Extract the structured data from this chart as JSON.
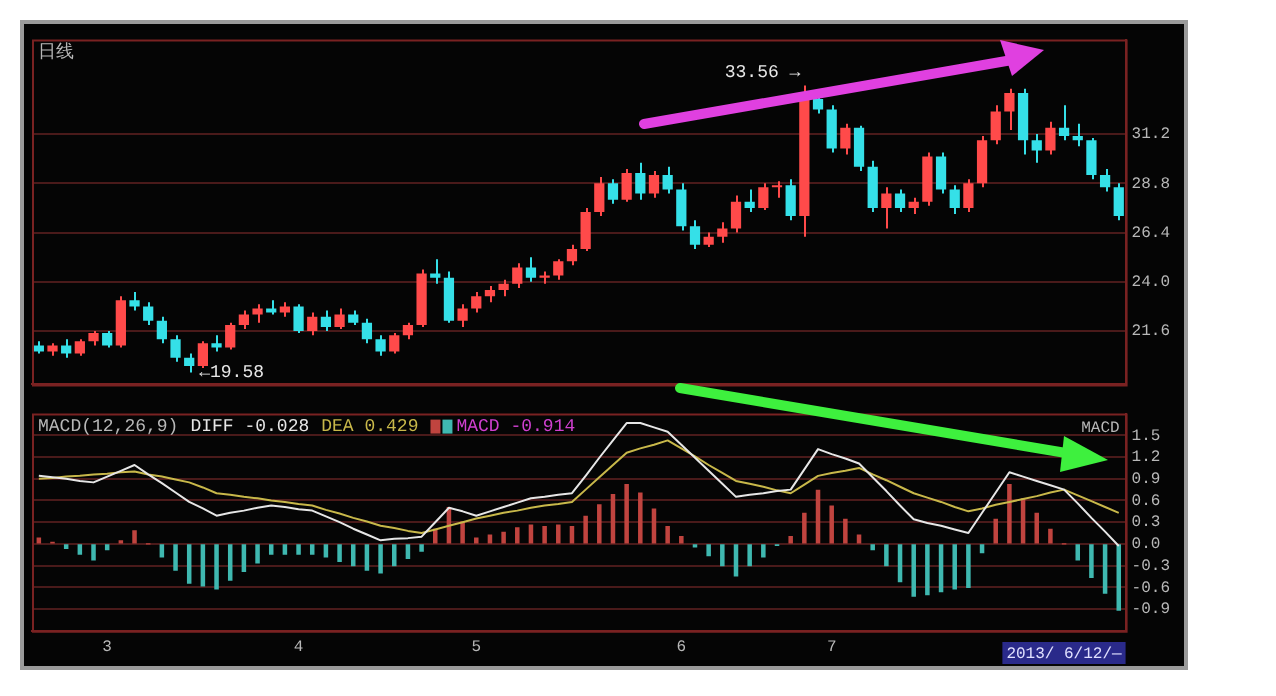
{
  "chart_data": [
    {
      "type": "candlestick",
      "title": "日线",
      "categories": [
        null,
        null,
        null,
        null,
        null,
        "3",
        null,
        null,
        null,
        null,
        null,
        null,
        null,
        null,
        null,
        null,
        null,
        null,
        null,
        "4",
        null,
        null,
        null,
        null,
        null,
        null,
        null,
        null,
        null,
        null,
        null,
        null,
        "5",
        null,
        null,
        null,
        null,
        null,
        null,
        null,
        null,
        null,
        null,
        null,
        null,
        null,
        null,
        "6",
        null,
        null,
        null,
        null,
        null,
        null,
        null,
        null,
        null,
        null,
        "7",
        null,
        null,
        null,
        null,
        null,
        null,
        null,
        null,
        null,
        null,
        null,
        null,
        null,
        null,
        null,
        null,
        null,
        null,
        null,
        null,
        null
      ],
      "ohlc": [
        [
          20.9,
          21.1,
          20.5,
          20.6
        ],
        [
          20.6,
          21.0,
          20.4,
          20.9
        ],
        [
          20.9,
          21.2,
          20.3,
          20.5
        ],
        [
          20.5,
          21.2,
          20.4,
          21.1
        ],
        [
          21.1,
          21.6,
          20.9,
          21.5
        ],
        [
          21.5,
          21.6,
          20.8,
          20.9
        ],
        [
          20.9,
          23.3,
          20.8,
          23.1
        ],
        [
          23.1,
          23.5,
          22.6,
          22.8
        ],
        [
          22.8,
          23.0,
          21.9,
          22.1
        ],
        [
          22.1,
          22.3,
          21.0,
          21.2
        ],
        [
          21.2,
          21.4,
          20.1,
          20.3
        ],
        [
          20.3,
          20.5,
          19.58,
          19.9
        ],
        [
          19.9,
          21.1,
          19.8,
          21.0
        ],
        [
          21.0,
          21.4,
          20.6,
          20.8
        ],
        [
          20.8,
          22.0,
          20.7,
          21.9
        ],
        [
          21.9,
          22.6,
          21.7,
          22.4
        ],
        [
          22.4,
          22.9,
          22.0,
          22.7
        ],
        [
          22.7,
          23.1,
          22.4,
          22.5
        ],
        [
          22.5,
          23.0,
          22.3,
          22.8
        ],
        [
          22.8,
          22.9,
          21.5,
          21.6
        ],
        [
          21.6,
          22.5,
          21.4,
          22.3
        ],
        [
          22.3,
          22.6,
          21.6,
          21.8
        ],
        [
          21.8,
          22.7,
          21.7,
          22.4
        ],
        [
          22.4,
          22.6,
          21.9,
          22.0
        ],
        [
          22.0,
          22.2,
          21.0,
          21.2
        ],
        [
          21.2,
          21.4,
          20.4,
          20.6
        ],
        [
          20.6,
          21.5,
          20.5,
          21.4
        ],
        [
          21.4,
          22.0,
          21.2,
          21.9
        ],
        [
          21.9,
          24.6,
          21.8,
          24.4
        ],
        [
          24.4,
          25.1,
          23.9,
          24.2
        ],
        [
          24.2,
          24.5,
          22.0,
          22.1
        ],
        [
          22.1,
          22.9,
          21.8,
          22.7
        ],
        [
          22.7,
          23.5,
          22.5,
          23.3
        ],
        [
          23.3,
          23.8,
          23.0,
          23.6
        ],
        [
          23.6,
          24.1,
          23.3,
          23.9
        ],
        [
          23.9,
          24.9,
          23.7,
          24.7
        ],
        [
          24.7,
          25.2,
          24.0,
          24.2
        ],
        [
          24.2,
          24.5,
          23.9,
          24.3
        ],
        [
          24.3,
          25.1,
          24.1,
          25.0
        ],
        [
          25.0,
          25.8,
          24.8,
          25.6
        ],
        [
          25.6,
          27.6,
          25.5,
          27.4
        ],
        [
          27.4,
          29.1,
          27.2,
          28.8
        ],
        [
          28.8,
          29.0,
          27.8,
          28.0
        ],
        [
          28.0,
          29.5,
          27.9,
          29.3
        ],
        [
          29.3,
          29.8,
          28.0,
          28.3
        ],
        [
          28.3,
          29.4,
          28.1,
          29.2
        ],
        [
          29.2,
          29.6,
          28.3,
          28.5
        ],
        [
          28.5,
          28.8,
          26.5,
          26.7
        ],
        [
          26.7,
          27.0,
          25.6,
          25.8
        ],
        [
          25.8,
          26.4,
          25.7,
          26.2
        ],
        [
          26.2,
          26.9,
          25.9,
          26.6
        ],
        [
          26.6,
          28.2,
          26.4,
          27.9
        ],
        [
          27.9,
          28.5,
          27.4,
          27.6
        ],
        [
          27.6,
          28.8,
          27.5,
          28.6
        ],
        [
          28.6,
          28.9,
          28.1,
          28.7
        ],
        [
          28.7,
          29.0,
          27.0,
          27.2
        ],
        [
          27.2,
          33.56,
          26.2,
          32.9
        ],
        [
          32.9,
          33.2,
          32.2,
          32.4
        ],
        [
          32.4,
          32.6,
          30.3,
          30.5
        ],
        [
          30.5,
          31.7,
          30.2,
          31.5
        ],
        [
          31.5,
          31.6,
          29.4,
          29.6
        ],
        [
          29.6,
          29.9,
          27.4,
          27.6
        ],
        [
          27.6,
          28.6,
          26.6,
          28.3
        ],
        [
          28.3,
          28.5,
          27.4,
          27.6
        ],
        [
          27.6,
          28.1,
          27.3,
          27.9
        ],
        [
          27.9,
          30.3,
          27.7,
          30.1
        ],
        [
          30.1,
          30.3,
          28.3,
          28.5
        ],
        [
          28.5,
          28.7,
          27.3,
          27.6
        ],
        [
          27.6,
          29.0,
          27.4,
          28.8
        ],
        [
          28.8,
          31.1,
          28.6,
          30.9
        ],
        [
          30.9,
          32.6,
          30.7,
          32.3
        ],
        [
          32.3,
          33.4,
          31.4,
          33.2
        ],
        [
          33.2,
          33.4,
          30.2,
          30.9
        ],
        [
          30.9,
          31.2,
          29.8,
          30.4
        ],
        [
          30.4,
          31.8,
          30.2,
          31.5
        ],
        [
          31.5,
          32.6,
          30.9,
          31.1
        ],
        [
          31.1,
          31.7,
          30.6,
          30.9
        ],
        [
          30.9,
          31.0,
          29.0,
          29.2
        ],
        [
          29.2,
          29.5,
          28.4,
          28.6
        ],
        [
          28.6,
          28.8,
          27.0,
          27.2
        ]
      ],
      "colors": [
        "#35e0e8",
        "#ff4a4a",
        "#35e0e8",
        "#ff4a4a",
        "#ff4a4a",
        "#35e0e8",
        "#ff4a4a",
        "#35e0e8",
        "#35e0e8",
        "#35e0e8",
        "#35e0e8",
        "#35e0e8",
        "#ff4a4a",
        "#35e0e8",
        "#ff4a4a",
        "#ff4a4a",
        "#ff4a4a",
        "#35e0e8",
        "#ff4a4a",
        "#35e0e8",
        "#ff4a4a",
        "#35e0e8",
        "#ff4a4a",
        "#35e0e8",
        "#35e0e8",
        "#35e0e8",
        "#ff4a4a",
        "#ff4a4a",
        "#ff4a4a",
        "#35e0e8",
        "#35e0e8",
        "#ff4a4a",
        "#ff4a4a",
        "#ff4a4a",
        "#ff4a4a",
        "#ff4a4a",
        "#35e0e8",
        "#ff4a4a",
        "#ff4a4a",
        "#ff4a4a",
        "#ff4a4a",
        "#ff4a4a",
        "#35e0e8",
        "#ff4a4a",
        "#35e0e8",
        "#ff4a4a",
        "#35e0e8",
        "#35e0e8",
        "#35e0e8",
        "#ff4a4a",
        "#ff4a4a",
        "#ff4a4a",
        "#35e0e8",
        "#ff4a4a",
        "#ff4a4a",
        "#35e0e8",
        "#ff4a4a",
        "#35e0e8",
        "#35e0e8",
        "#ff4a4a",
        "#35e0e8",
        "#35e0e8",
        "#ff4a4a",
        "#35e0e8",
        "#ff4a4a",
        "#ff4a4a",
        "#35e0e8",
        "#35e0e8",
        "#ff4a4a",
        "#ff4a4a",
        "#ff4a4a",
        "#ff4a4a",
        "#35e0e8",
        "#35e0e8",
        "#ff4a4a",
        "#35e0e8",
        "#35e0e8",
        "#35e0e8",
        "#35e0e8",
        "#35e0e8"
      ],
      "ylim": [
        19.0,
        35.8
      ],
      "yticks": [
        21.6,
        {
          "value": 24,
          "label": "24.0"
        },
        26.4,
        28.8,
        31.2
      ],
      "grid": "y",
      "tick_labels": "y",
      "annotations": [
        "33.56 →",
        "←19.58"
      ]
    },
    {
      "type": "bar",
      "title": "MACD(12,26,9)",
      "legend": "top left",
      "marker": "none",
      "categories": [
        null,
        null,
        null,
        null,
        null,
        "3",
        null,
        null,
        null,
        null,
        null,
        null,
        null,
        null,
        null,
        null,
        null,
        null,
        null,
        "4",
        null,
        null,
        null,
        null,
        null,
        null,
        null,
        null,
        null,
        null,
        null,
        null,
        "5",
        null,
        null,
        null,
        null,
        null,
        null,
        null,
        null,
        null,
        null,
        null,
        null,
        null,
        null,
        "6",
        null,
        null,
        null,
        null,
        null,
        null,
        null,
        null,
        null,
        null,
        "7",
        null,
        null,
        null,
        null,
        null,
        null,
        null,
        null,
        null,
        null,
        null,
        null,
        null,
        null,
        null,
        null,
        null,
        null,
        null,
        null,
        null
      ],
      "series": [
        {
          "name": "DIFF -0.028",
          "type": "line",
          "color": "#e6e6e6",
          "values": [
            0.94,
            0.92,
            0.9,
            0.87,
            0.85,
            0.93,
            1.01,
            1.09,
            0.96,
            0.84,
            0.71,
            0.58,
            0.49,
            0.39,
            0.43,
            0.46,
            0.5,
            0.53,
            0.51,
            0.48,
            0.46,
            0.38,
            0.3,
            0.21,
            0.13,
            0.05,
            0.07,
            0.08,
            0.1,
            0.3,
            0.5,
            0.45,
            0.39,
            0.45,
            0.51,
            0.57,
            0.63,
            0.65,
            0.68,
            0.7,
            0.94,
            1.19,
            1.43,
            1.67,
            1.67,
            1.61,
            1.55,
            1.37,
            1.19,
            1.01,
            0.83,
            0.65,
            0.68,
            0.7,
            0.73,
            0.75,
            1.03,
            1.31,
            1.24,
            1.18,
            1.11,
            0.92,
            0.73,
            0.53,
            0.34,
            0.29,
            0.25,
            0.2,
            0.15,
            0.43,
            0.71,
            0.99,
            0.93,
            0.87,
            0.81,
            0.75,
            0.56,
            0.36,
            0.17,
            -0.028
          ]
        },
        {
          "name": "DEA 0.429",
          "type": "line",
          "color": "#c8b84a",
          "values": [
            0.9,
            0.91,
            0.93,
            0.94,
            0.96,
            0.97,
            0.99,
            1.0,
            0.96,
            0.93,
            0.89,
            0.85,
            0.78,
            0.7,
            0.68,
            0.65,
            0.63,
            0.6,
            0.58,
            0.55,
            0.53,
            0.47,
            0.42,
            0.36,
            0.31,
            0.25,
            0.22,
            0.18,
            0.15,
            0.2,
            0.25,
            0.3,
            0.35,
            0.39,
            0.43,
            0.46,
            0.5,
            0.53,
            0.55,
            0.58,
            0.75,
            0.92,
            1.09,
            1.26,
            1.32,
            1.37,
            1.43,
            1.32,
            1.21,
            1.09,
            0.98,
            0.87,
            0.83,
            0.79,
            0.74,
            0.7,
            0.82,
            0.94,
            0.98,
            1.01,
            1.05,
            0.96,
            0.88,
            0.79,
            0.7,
            0.64,
            0.58,
            0.51,
            0.45,
            0.49,
            0.54,
            0.58,
            0.62,
            0.66,
            0.71,
            0.75,
            0.67,
            0.59,
            0.51,
            0.429
          ]
        },
        {
          "name": "MACD -0.914",
          "type": "bar",
          "color": "#d040d0",
          "values": [
            0.08,
            0.02,
            -0.06,
            -0.14,
            -0.22,
            -0.08,
            0.04,
            0.18,
            0.0,
            -0.18,
            -0.36,
            -0.54,
            -0.58,
            -0.62,
            -0.5,
            -0.38,
            -0.26,
            -0.14,
            -0.14,
            -0.14,
            -0.14,
            -0.18,
            -0.24,
            -0.3,
            -0.36,
            -0.4,
            -0.3,
            -0.2,
            -0.1,
            0.2,
            0.5,
            0.3,
            0.08,
            0.12,
            0.16,
            0.22,
            0.26,
            0.24,
            0.26,
            0.24,
            0.38,
            0.54,
            0.68,
            0.82,
            0.7,
            0.48,
            0.24,
            0.1,
            -0.04,
            -0.16,
            -0.3,
            -0.44,
            -0.3,
            -0.18,
            -0.02,
            0.1,
            0.42,
            0.74,
            0.52,
            0.34,
            0.12,
            -0.08,
            -0.3,
            -0.52,
            -0.72,
            -0.7,
            -0.66,
            -0.62,
            -0.6,
            -0.12,
            0.34,
            0.82,
            0.62,
            0.42,
            0.2,
            0.0,
            -0.22,
            -0.46,
            -0.68,
            -0.914
          ],
          "colors": [
            "#c0443f",
            "#c0443f",
            "#3fb8b0",
            "#3fb8b0",
            "#3fb8b0",
            "#3fb8b0",
            "#c0443f",
            "#c0443f",
            "#c0443f",
            "#3fb8b0",
            "#3fb8b0",
            "#3fb8b0",
            "#3fb8b0",
            "#3fb8b0",
            "#3fb8b0",
            "#3fb8b0",
            "#3fb8b0",
            "#3fb8b0",
            "#3fb8b0",
            "#3fb8b0",
            "#3fb8b0",
            "#3fb8b0",
            "#3fb8b0",
            "#3fb8b0",
            "#3fb8b0",
            "#3fb8b0",
            "#3fb8b0",
            "#3fb8b0",
            "#3fb8b0",
            "#c0443f",
            "#c0443f",
            "#c0443f",
            "#c0443f",
            "#c0443f",
            "#c0443f",
            "#c0443f",
            "#c0443f",
            "#c0443f",
            "#c0443f",
            "#c0443f",
            "#c0443f",
            "#c0443f",
            "#c0443f",
            "#c0443f",
            "#c0443f",
            "#c0443f",
            "#c0443f",
            "#c0443f",
            "#3fb8b0",
            "#3fb8b0",
            "#3fb8b0",
            "#3fb8b0",
            "#3fb8b0",
            "#3fb8b0",
            "#3fb8b0",
            "#c0443f",
            "#c0443f",
            "#c0443f",
            "#c0443f",
            "#c0443f",
            "#c0443f",
            "#3fb8b0",
            "#3fb8b0",
            "#3fb8b0",
            "#3fb8b0",
            "#3fb8b0",
            "#3fb8b0",
            "#3fb8b0",
            "#3fb8b0",
            "#3fb8b0",
            "#c0443f",
            "#c0443f",
            "#c0443f",
            "#c0443f",
            "#c0443f",
            "#c0443f",
            "#3fb8b0",
            "#3fb8b0",
            "#3fb8b0",
            "#3fb8b0"
          ]
        }
      ],
      "ylim": [
        -1.2,
        1.8
      ],
      "yticks": [
        -0.9,
        -0.6,
        -0.3,
        {
          "value": 0,
          "label": "0.0"
        },
        0.3,
        0.6,
        0.9,
        1.2,
        1.5
      ],
      "grid": "y",
      "annotations": [
        "MACD",
        "2013/ 6/12/—"
      ]
    }
  ]
}
